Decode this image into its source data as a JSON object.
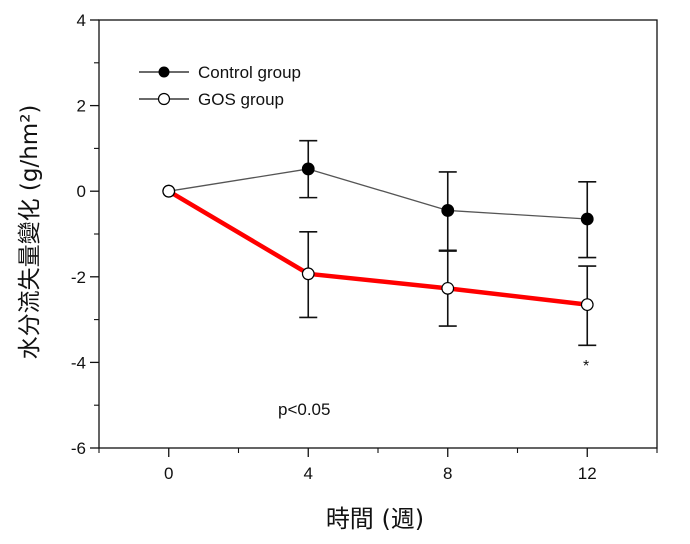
{
  "chart_data": {
    "type": "line",
    "xlabel": "時間 (週)",
    "ylabel": "水分流失量變化 (g/hm²)",
    "x": [
      0,
      4,
      8,
      12
    ],
    "x_ticks": [
      "0",
      "4",
      "8",
      "12"
    ],
    "xlim": [
      -2,
      14
    ],
    "ylim": [
      -6,
      4
    ],
    "y_ticks": [
      "4",
      "2",
      "0",
      "-2",
      "-4",
      "-6"
    ],
    "grid": false,
    "legend_position": "top-left",
    "series": [
      {
        "name": "Control group",
        "values": [
          0,
          0.52,
          -0.45,
          -0.65
        ],
        "error_low": [
          null,
          -0.15,
          -1.4,
          -1.55
        ],
        "error_high": [
          null,
          1.18,
          0.45,
          0.22
        ],
        "marker": "filled-circle",
        "color": "#555555"
      },
      {
        "name": "GOS group",
        "values": [
          0,
          -1.93,
          -2.27,
          -2.65
        ],
        "error_low": [
          null,
          -2.95,
          -3.15,
          -3.6
        ],
        "error_high": [
          null,
          -0.95,
          -1.38,
          -1.75
        ],
        "marker": "open-circle",
        "color": "#ff0000"
      }
    ],
    "annotations": {
      "significance": "p<0.05",
      "star": "*"
    }
  }
}
